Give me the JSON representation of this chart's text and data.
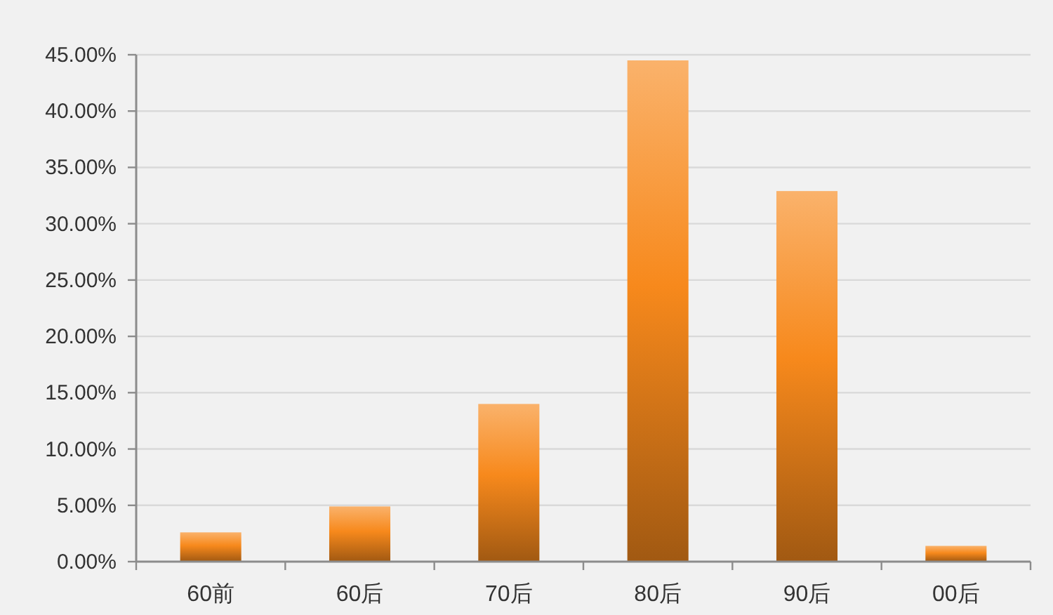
{
  "chart_data": {
    "type": "bar",
    "categories": [
      "60前",
      "60后",
      "70后",
      "80后",
      "90后",
      "00后"
    ],
    "values": [
      2.6,
      4.9,
      14.0,
      44.5,
      32.9,
      1.4
    ],
    "color": "#f7891c",
    "ylim": [
      0,
      45
    ],
    "yticks": [
      {
        "value": 0,
        "label": "0.00%"
      },
      {
        "value": 5,
        "label": "5.00%"
      },
      {
        "value": 10,
        "label": "10.00%"
      },
      {
        "value": 15,
        "label": "15.00%"
      },
      {
        "value": 20,
        "label": "20.00%"
      },
      {
        "value": 25,
        "label": "25.00%"
      },
      {
        "value": 30,
        "label": "30.00%"
      },
      {
        "value": 35,
        "label": "35.00%"
      },
      {
        "value": 40,
        "label": "40.00%"
      },
      {
        "value": 45,
        "label": "45.00%"
      }
    ],
    "grid": "y"
  }
}
